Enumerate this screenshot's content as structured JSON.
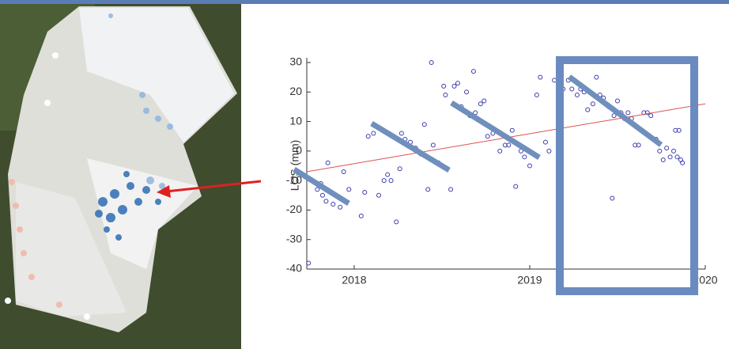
{
  "chart_data": {
    "type": "scatter",
    "ylabel": "LOS (mm)",
    "xlim": [
      2017.73,
      2020.0
    ],
    "xticks": [
      2018,
      2019,
      2020
    ],
    "ylim": [
      -40,
      30
    ],
    "yticks": [
      -40,
      -30,
      -20,
      -10,
      0,
      10,
      20,
      30
    ],
    "series": [
      {
        "color": "#3b3bb0",
        "x": [
          2017.74,
          2017.79,
          2017.81,
          2017.82,
          2017.84,
          2017.85,
          2017.88,
          2017.92,
          2017.94,
          2017.97,
          2018.04,
          2018.06,
          2018.08,
          2018.11,
          2018.14,
          2018.17,
          2018.19,
          2018.21,
          2018.24,
          2018.26,
          2018.27,
          2018.29,
          2018.32,
          2018.35,
          2018.38,
          2018.4,
          2018.42,
          2018.44,
          2018.45,
          2018.48,
          2018.51,
          2018.52,
          2018.55,
          2018.57,
          2018.59,
          2018.61,
          2018.64,
          2018.66,
          2018.68,
          2018.69,
          2018.72,
          2018.74,
          2018.76,
          2018.79,
          2018.83,
          2018.86,
          2018.88,
          2018.9,
          2018.92,
          2018.95,
          2018.97,
          2019.0,
          2019.04,
          2019.06,
          2019.09,
          2019.11,
          2019.14,
          2019.17,
          2019.19,
          2019.22,
          2019.24,
          2019.27,
          2019.29,
          2019.31,
          2019.33,
          2019.36,
          2019.38,
          2019.4,
          2019.42,
          2019.45,
          2019.47,
          2019.48,
          2019.5,
          2019.52,
          2019.54,
          2019.56,
          2019.58,
          2019.6,
          2019.62,
          2019.65,
          2019.67,
          2019.69,
          2019.72,
          2019.74,
          2019.76,
          2019.78,
          2019.8,
          2019.82,
          2019.83,
          2019.84,
          2019.85,
          2019.86,
          2019.87
        ],
        "values": [
          -38,
          -13,
          -11,
          -15,
          -17,
          -4,
          -18,
          -19,
          -7,
          -13,
          -22,
          -14,
          5,
          6,
          -15,
          -10,
          -8,
          -10,
          -24,
          -6,
          6,
          4,
          3,
          1,
          -1,
          9,
          -13,
          30,
          2,
          -4,
          22,
          19,
          -13,
          22,
          23,
          15,
          20,
          12,
          27,
          13,
          16,
          17,
          5,
          6,
          0,
          2,
          2,
          7,
          -12,
          0,
          -2,
          -5,
          19,
          25,
          3,
          0,
          24,
          21,
          21,
          24,
          21,
          19,
          21,
          20,
          14,
          16,
          25,
          19,
          18,
          15,
          -16,
          12,
          17,
          13,
          11,
          13,
          11,
          2,
          2,
          13,
          13,
          12,
          4,
          0,
          -3,
          1,
          -2,
          0,
          7,
          -2,
          7,
          -3,
          -4
        ]
      }
    ],
    "trend": {
      "color": "#e05050",
      "x": [
        2017.73,
        2020.0
      ],
      "values": [
        -7,
        16
      ]
    }
  }
}
